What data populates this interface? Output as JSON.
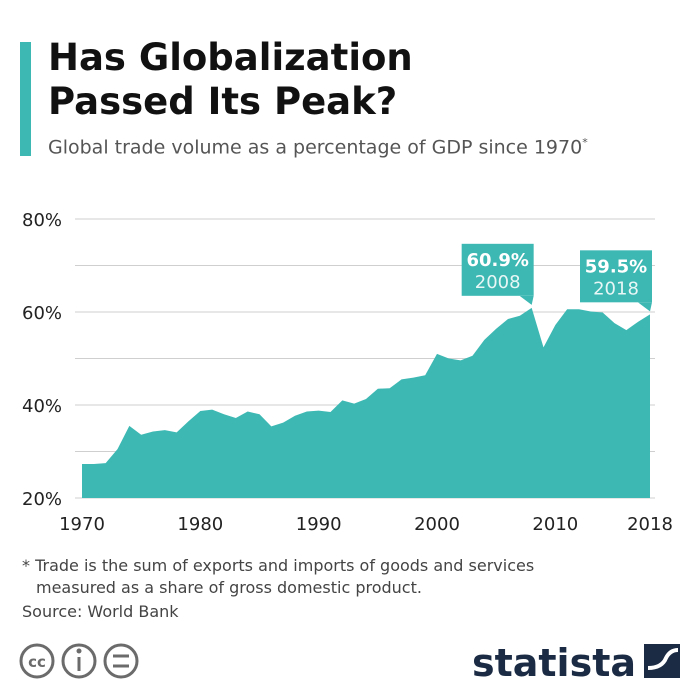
{
  "chart_data": {
    "type": "area",
    "title": "Has Globalization Passed Its Peak?",
    "subtitle": "Global trade volume as a percentage of GDP since 1970",
    "subtitle_mark": "*",
    "x": [
      1970,
      1971,
      1972,
      1973,
      1974,
      1975,
      1976,
      1977,
      1978,
      1979,
      1980,
      1981,
      1982,
      1983,
      1984,
      1985,
      1986,
      1987,
      1988,
      1989,
      1990,
      1991,
      1992,
      1993,
      1994,
      1995,
      1996,
      1997,
      1998,
      1999,
      2000,
      2001,
      2002,
      2003,
      2004,
      2005,
      2006,
      2007,
      2008,
      2009,
      2010,
      2011,
      2012,
      2013,
      2014,
      2015,
      2016,
      2017,
      2018
    ],
    "values": [
      27.3,
      27.3,
      27.5,
      30.5,
      35.5,
      33.6,
      34.3,
      34.6,
      34.1,
      36.5,
      38.7,
      39.0,
      38.0,
      37.2,
      38.6,
      38.0,
      35.4,
      36.2,
      37.7,
      38.6,
      38.8,
      38.5,
      41.0,
      40.3,
      41.3,
      43.5,
      43.6,
      45.5,
      45.9,
      46.4,
      51.0,
      50.0,
      49.6,
      50.6,
      54.0,
      56.4,
      58.5,
      59.2,
      60.9,
      52.4,
      57.2,
      60.6,
      60.6,
      60.1,
      59.9,
      57.6,
      56.1,
      57.9,
      59.5
    ],
    "value_labels": [
      null,
      null,
      null,
      null,
      null,
      null,
      null,
      null,
      null,
      null,
      null,
      null,
      null,
      null,
      null,
      null,
      null,
      null,
      null,
      null,
      null,
      null,
      null,
      null,
      null,
      null,
      null,
      null,
      null,
      null,
      null,
      null,
      null,
      null,
      null,
      null,
      null,
      null,
      "60.9%",
      null,
      null,
      null,
      null,
      null,
      null,
      null,
      null,
      null,
      "59.5%"
    ],
    "color": "#3db8b3",
    "xlim": [
      1970,
      2018
    ],
    "xticks": [
      1970,
      1980,
      1990,
      2000,
      2010,
      2018
    ],
    "ylim": [
      20,
      80
    ],
    "yticks": [
      {
        "value": 20,
        "label": "20%"
      },
      {
        "value": 40,
        "label": "40%"
      },
      {
        "value": 60,
        "label": "60%"
      },
      {
        "value": 80,
        "label": "80%"
      }
    ],
    "yticks_minor": [
      30,
      50,
      70
    ],
    "grid": true,
    "footnote_line1": "* Trade is the sum of exports and imports of goods and services",
    "footnote_line2": "measured as a share of gross domestic product.",
    "source": "Source: World Bank",
    "brand": "statista"
  }
}
